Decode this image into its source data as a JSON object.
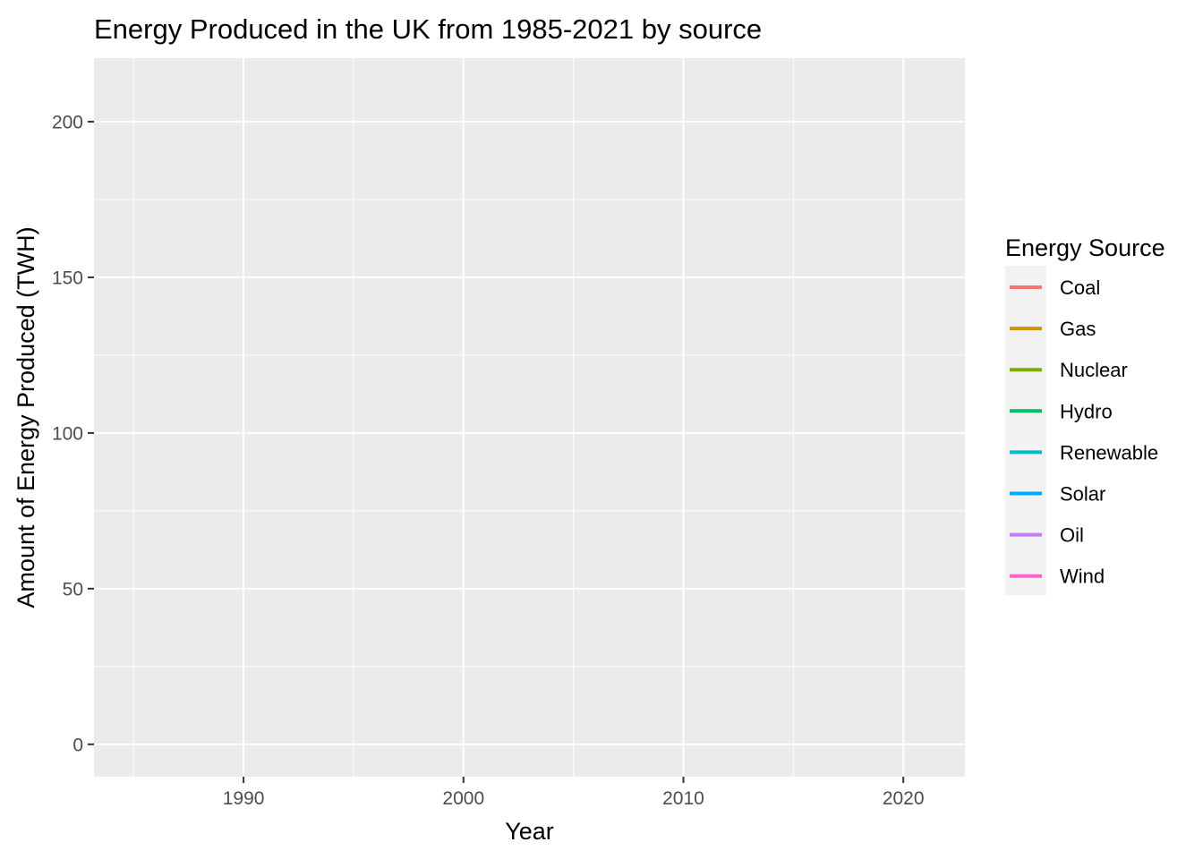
{
  "chart_data": {
    "type": "line",
    "title": "Energy Produced in the UK from 1985-2021 by source",
    "xlabel": "Year",
    "ylabel": "Amount of Energy Produced (TWH)",
    "xlim": [
      1983.2,
      2022.8
    ],
    "ylim": [
      -10.4,
      220.4
    ],
    "x_ticks": [
      1990,
      2000,
      2010,
      2020
    ],
    "x_minor_ticks": [
      1985,
      1995,
      2005,
      2015
    ],
    "y_ticks": [
      0,
      50,
      100,
      150,
      200
    ],
    "y_minor_ticks": [
      25,
      75,
      125,
      175
    ],
    "grid": true,
    "legend": {
      "title": "Energy Source",
      "position": "right"
    },
    "series": [
      {
        "name": "Coal",
        "color": "#F8766D",
        "values": []
      },
      {
        "name": "Gas",
        "color": "#CD9600",
        "values": []
      },
      {
        "name": "Nuclear",
        "color": "#7CAE00",
        "values": []
      },
      {
        "name": "Hydro",
        "color": "#00BE67",
        "values": []
      },
      {
        "name": "Renewable",
        "color": "#00BFC4",
        "values": []
      },
      {
        "name": "Solar",
        "color": "#00A9FF",
        "values": []
      },
      {
        "name": "Oil",
        "color": "#C77CFF",
        "values": []
      },
      {
        "name": "Wind",
        "color": "#FF61CC",
        "values": []
      }
    ]
  }
}
